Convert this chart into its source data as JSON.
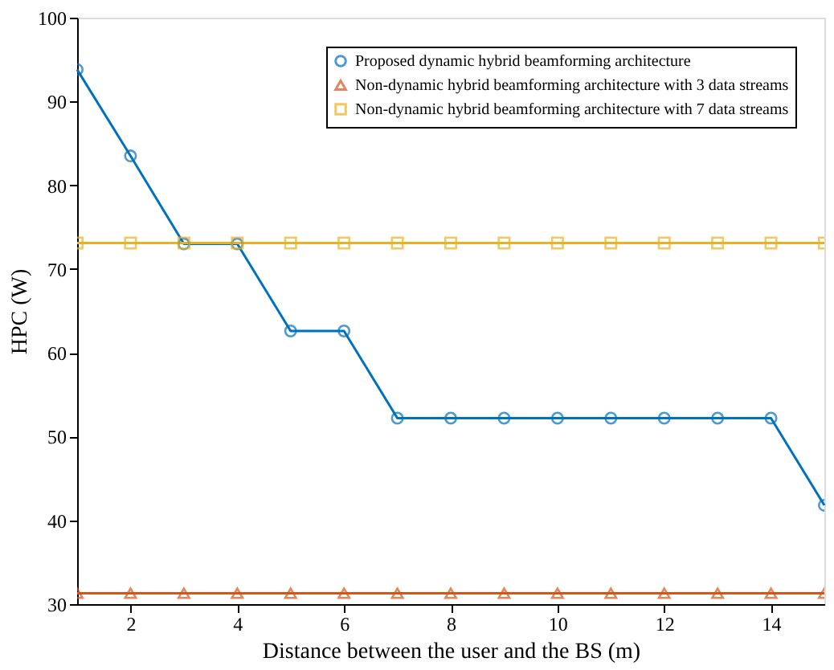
{
  "chart_data": {
    "type": "line",
    "xlabel": "Distance between the user and the BS (m)",
    "ylabel": "HPC (W)",
    "x": [
      1,
      2,
      3,
      4,
      5,
      6,
      7,
      8,
      9,
      10,
      11,
      12,
      13,
      14,
      15
    ],
    "series": [
      {
        "name": "Proposed dynamic hybrid beamforming architecture",
        "color": "#0072bd",
        "marker": "circle",
        "values": [
          93.8,
          83.5,
          73,
          73,
          62.6,
          62.6,
          52.2,
          52.2,
          52.2,
          52.2,
          52.2,
          52.2,
          52.2,
          52.2,
          41.8
        ]
      },
      {
        "name": "Non-dynamic hybrid beamforming architecture with 3 data streams",
        "color": "#d95319",
        "marker": "triangle",
        "values": [
          31.3,
          31.3,
          31.3,
          31.3,
          31.3,
          31.3,
          31.3,
          31.3,
          31.3,
          31.3,
          31.3,
          31.3,
          31.3,
          31.3,
          31.3
        ]
      },
      {
        "name": "Non-dynamic hybrid beamforming architecture with 7 data streams",
        "color": "#edb120",
        "marker": "square",
        "values": [
          73.1,
          73.1,
          73.1,
          73.1,
          73.1,
          73.1,
          73.1,
          73.1,
          73.1,
          73.1,
          73.1,
          73.1,
          73.1,
          73.1,
          73.1
        ]
      }
    ],
    "xlim": [
      1,
      15
    ],
    "xticks": [
      2,
      4,
      6,
      8,
      10,
      12,
      14
    ],
    "ylim": [
      30,
      100
    ],
    "yticks": [
      30,
      40,
      50,
      60,
      70,
      80,
      90,
      100
    ],
    "grid": false,
    "legend": "top right",
    "line_style": "solid"
  }
}
